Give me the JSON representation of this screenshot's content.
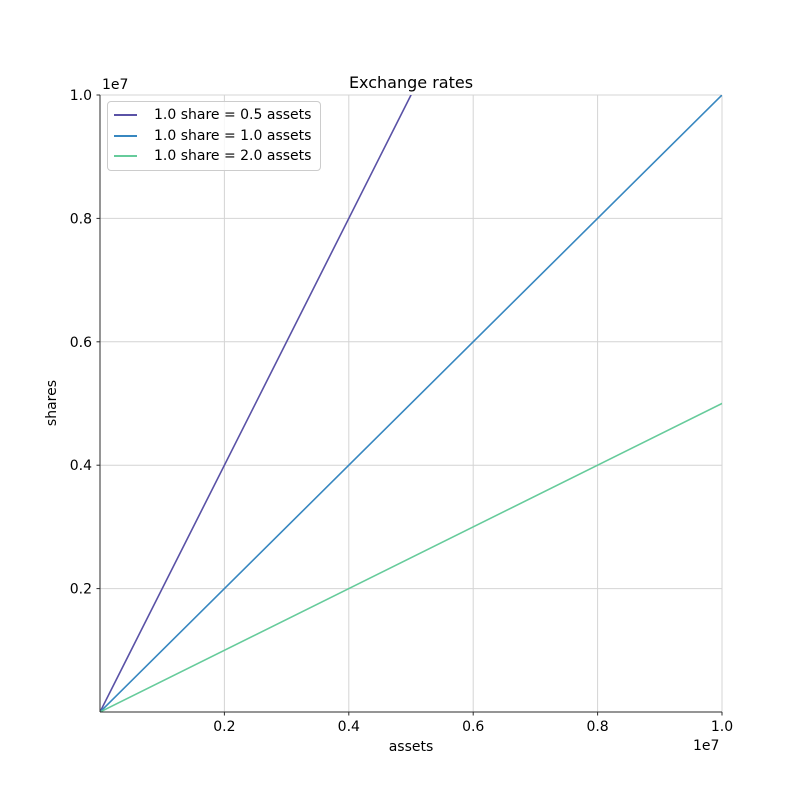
{
  "chart_data": {
    "type": "line",
    "title": "Exchange rates",
    "xlabel": "assets",
    "ylabel": "shares",
    "x_offset_text": "1e7",
    "y_offset_text": "1e7",
    "xlim": [
      0,
      10000000
    ],
    "ylim": [
      0,
      10000000
    ],
    "grid": true,
    "legend_position": "upper left",
    "xticks": {
      "values": [
        2000000,
        4000000,
        6000000,
        8000000,
        10000000
      ],
      "labels": [
        "0.2",
        "0.4",
        "0.6",
        "0.8",
        "1.0"
      ]
    },
    "yticks": {
      "values": [
        2000000,
        4000000,
        6000000,
        8000000,
        10000000
      ],
      "labels": [
        "0.2",
        "0.4",
        "0.6",
        "0.8",
        "1.0"
      ]
    },
    "colors": {
      "grid": "#d4d4d4",
      "spine": "#2b2b2b",
      "tick_text": "#000000"
    },
    "series": [
      {
        "label": "1.0 share = 0.5 assets",
        "assets_per_share": 0.5,
        "shares_per_asset": 2.0,
        "color": "#5a52a6",
        "points": [
          [
            0,
            0
          ],
          [
            5000000,
            10000000
          ]
        ]
      },
      {
        "label": "1.0 share = 1.0 assets",
        "assets_per_share": 1.0,
        "shares_per_asset": 1.0,
        "color": "#3787c0",
        "points": [
          [
            0,
            0
          ],
          [
            10000000,
            10000000
          ]
        ]
      },
      {
        "label": "1.0 share = 2.0 assets",
        "assets_per_share": 2.0,
        "shares_per_asset": 0.5,
        "color": "#66cb9b",
        "points": [
          [
            0,
            0
          ],
          [
            10000000,
            5000000
          ]
        ]
      }
    ]
  }
}
